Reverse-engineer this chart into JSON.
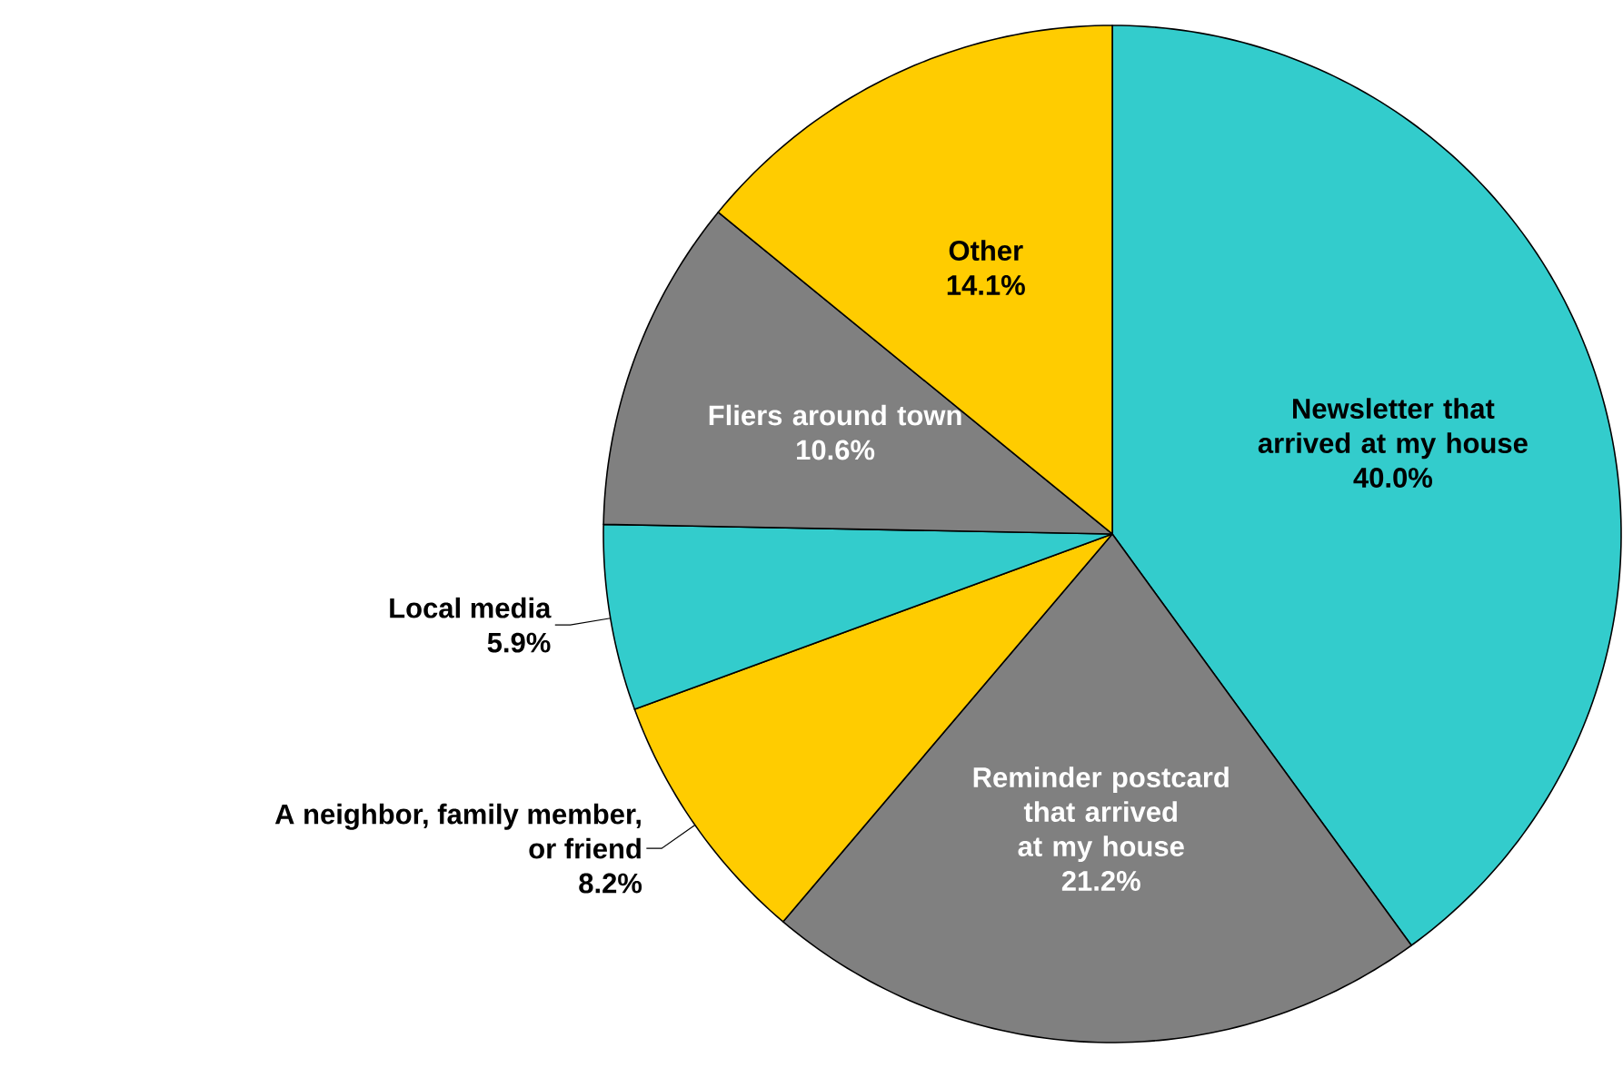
{
  "chart_data": {
    "type": "pie",
    "categories": [
      "Newsletter that arrived at my house",
      "Reminder postcard that arrived at my house",
      "A neighbor, family member, or friend",
      "Local media",
      "Fliers around town",
      "Other"
    ],
    "values": [
      40.0,
      21.2,
      8.2,
      5.9,
      10.6,
      14.1
    ],
    "colors": [
      "#33cccc",
      "#808080",
      "#ffcc00",
      "#33cccc",
      "#808080",
      "#ffcc00"
    ],
    "value_labels": [
      "40.0%",
      "21.2%",
      "8.2%",
      "5.9%",
      "10.6%",
      "14.1%"
    ]
  }
}
